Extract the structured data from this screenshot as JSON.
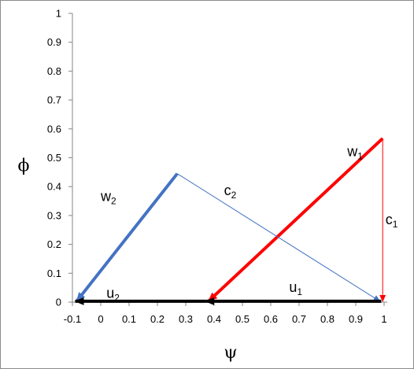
{
  "chart_data": {
    "type": "vector-diagram",
    "xlabel": "ψ",
    "ylabel": "ϕ",
    "xlim": [
      -0.1,
      1
    ],
    "ylim": [
      0,
      1
    ],
    "xticks": [
      "-0.1",
      "0",
      "0.1",
      "0.2",
      "0.3",
      "0.4",
      "0.5",
      "0.6",
      "0.7",
      "0.8",
      "0.9",
      "1"
    ],
    "yticks": [
      "0",
      "0.1",
      "0.2",
      "0.3",
      "0.4",
      "0.5",
      "0.6",
      "0.7",
      "0.8",
      "0.9",
      "1"
    ],
    "grid": false,
    "vectors": [
      {
        "id": "w1",
        "label": "w",
        "sub": "1",
        "from": [
          0.995,
          0.567
        ],
        "to": [
          0.38,
          0.003
        ],
        "color": "#ff0000",
        "width": "thick",
        "label_at": [
          0.87,
          0.505
        ]
      },
      {
        "id": "c1",
        "label": "c",
        "sub": "1",
        "from": [
          0.995,
          0.567
        ],
        "to": [
          0.995,
          0.003
        ],
        "color": "#ff0000",
        "width": "thin",
        "label_at": [
          1.005,
          0.27
        ]
      },
      {
        "id": "w2",
        "label": "w",
        "sub": "2",
        "from": [
          0.27,
          0.445
        ],
        "to": [
          -0.085,
          0.003
        ],
        "color": "#4472c4",
        "width": "thick",
        "label_at": [
          0.0,
          0.35
        ]
      },
      {
        "id": "c2",
        "label": "c",
        "sub": "2",
        "from": [
          0.27,
          0.445
        ],
        "to": [
          0.985,
          0.003
        ],
        "color": "#4472c4",
        "width": "thin",
        "label_at": [
          0.435,
          0.37
        ]
      },
      {
        "id": "u1",
        "label": "u",
        "sub": "1",
        "from": [
          0.99,
          0.003
        ],
        "to": [
          0.37,
          0.003
        ],
        "color": "#000000",
        "width": "thick",
        "label_at": [
          0.665,
          0.035
        ]
      },
      {
        "id": "u2",
        "label": "u",
        "sub": "2",
        "from": [
          0.37,
          0.003
        ],
        "to": [
          -0.09,
          0.003
        ],
        "color": "#000000",
        "width": "thick",
        "label_at": [
          0.02,
          0.015
        ]
      }
    ]
  }
}
